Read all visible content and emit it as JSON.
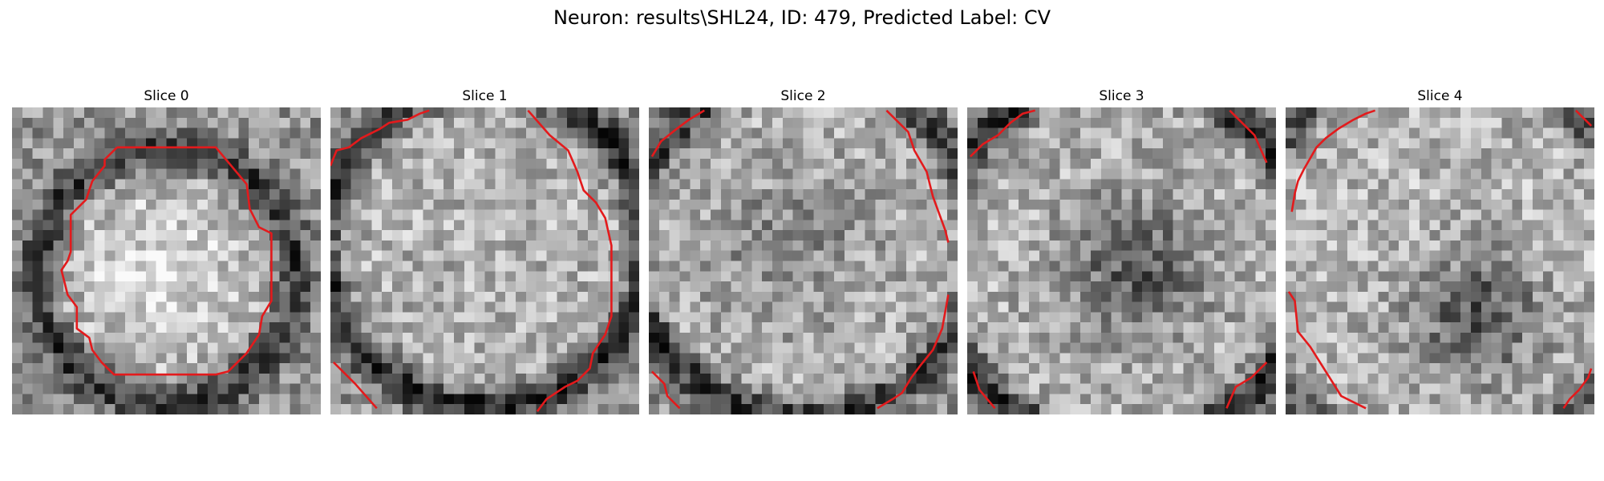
{
  "figure": {
    "title": "Neuron: results\\SHL24, ID: 479, Predicted Label: CV"
  },
  "colormap": "gray",
  "contour_color": "#e31a1c",
  "slices": [
    {
      "label": "Slice 0"
    },
    {
      "label": "Slice 1"
    },
    {
      "label": "Slice 2"
    },
    {
      "label": "Slice 3"
    },
    {
      "label": "Slice 4"
    }
  ]
}
